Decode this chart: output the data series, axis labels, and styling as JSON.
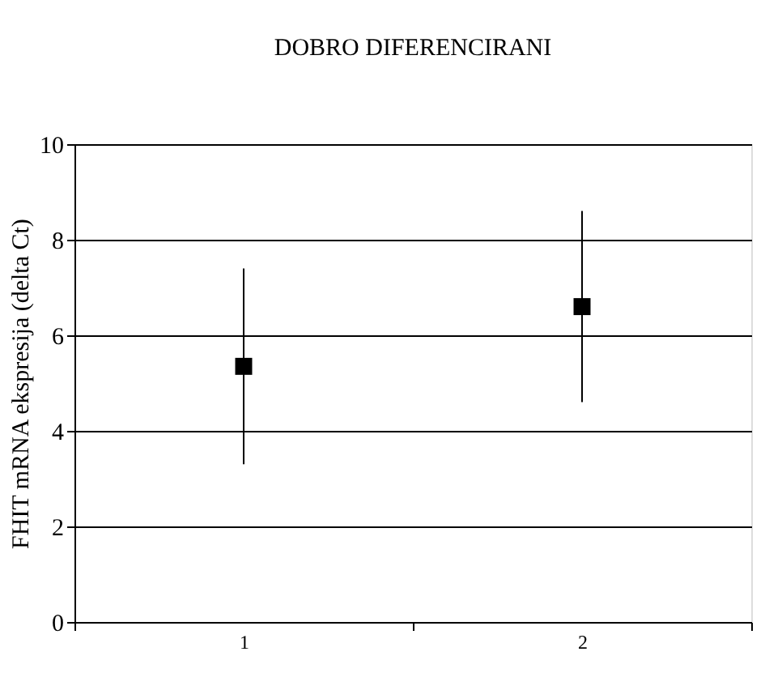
{
  "chart_data": {
    "type": "scatter",
    "title": "DOBRO DIFERENCIRANI",
    "ylabel": "FHIT mRNA ekspresija (delta Ct)",
    "categories": [
      "1",
      "2"
    ],
    "series": [
      {
        "color": "#000000",
        "values": [
          5.35,
          6.6
        ],
        "errors": [
          2.05,
          2.0
        ]
      }
    ],
    "ylim": [
      0,
      10
    ],
    "yticks": [
      0,
      2,
      4,
      6,
      8,
      10
    ],
    "grid": "y",
    "marker": "square"
  }
}
